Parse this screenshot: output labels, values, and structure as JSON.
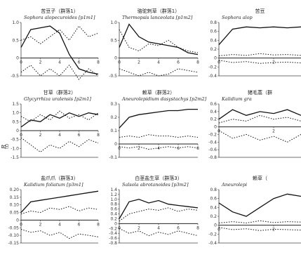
{
  "y_axis_label": "R",
  "y_axis_label_sub": "(t)",
  "chart_data": [
    {
      "type": "line",
      "title": "苦豆子（群落1）",
      "species": "Sophora alopecuroides [p1m1]",
      "ylim": [
        -0.5,
        1.0
      ],
      "yticks": [
        "1.0",
        "0.5",
        "0",
        "-0.5"
      ],
      "xticks": [
        "0",
        "2",
        "4",
        "6",
        "8"
      ],
      "x": [
        0,
        1,
        2,
        3,
        4,
        5,
        6,
        7,
        8
      ],
      "series": [
        {
          "style": "solid",
          "values": [
            0.3,
            0.8,
            0.85,
            0.9,
            0.7,
            0.1,
            -0.3,
            -0.4,
            -0.45
          ]
        },
        {
          "style": "dotted",
          "values": [
            0.5,
            0.6,
            0.4,
            0.6,
            0.8,
            0.5,
            0.9,
            0.6,
            0.7
          ]
        },
        {
          "style": "dotted",
          "values": [
            -0.4,
            -0.2,
            -0.5,
            -0.3,
            -0.5,
            -0.2,
            -0.6,
            -0.3,
            -0.5
          ]
        }
      ]
    },
    {
      "type": "line",
      "title": "骆驼刺草（群落1）",
      "species": "Thermopsis lanceolata [p1m2]",
      "ylim": [
        -0.5,
        1.0
      ],
      "yticks": [
        "1.0",
        "0.5",
        "0",
        "-0.5"
      ],
      "xticks": [
        "0",
        "2",
        "4",
        "6",
        "8"
      ],
      "x": [
        0,
        1,
        2,
        3,
        4,
        5,
        6,
        7,
        8
      ],
      "series": [
        {
          "style": "solid",
          "values": [
            0.3,
            0.95,
            0.6,
            0.45,
            0.4,
            0.35,
            0.3,
            0.15,
            0.1
          ]
        },
        {
          "style": "dotted",
          "values": [
            0.8,
            0.3,
            0.2,
            0.4,
            0.35,
            0.5,
            0.3,
            0.2,
            0.15
          ]
        },
        {
          "style": "dotted",
          "values": [
            -0.3,
            -0.4,
            -0.5,
            -0.4,
            -0.5,
            -0.45,
            -0.3,
            -0.35,
            -0.4
          ]
        }
      ]
    },
    {
      "type": "line",
      "title": "苦豆",
      "species": "Sophora alop",
      "ylim": [
        -0.4,
        0.8
      ],
      "yticks": [
        "0.8",
        "0.6",
        "0.4",
        "0.2",
        "0",
        "-0.2",
        "-0.4"
      ],
      "xticks": [
        "0",
        "2"
      ],
      "x": [
        0,
        0.5,
        1,
        1.5,
        2,
        2.5,
        3
      ],
      "series": [
        {
          "style": "solid",
          "values": [
            0.3,
            0.65,
            0.7,
            0.68,
            0.7,
            0.68,
            0.7
          ]
        },
        {
          "style": "dotted",
          "values": [
            0.05,
            0.08,
            0.06,
            0.1,
            0.07,
            0.08,
            0.06
          ]
        },
        {
          "style": "dotted",
          "values": [
            -0.05,
            -0.1,
            -0.08,
            -0.12,
            -0.1,
            -0.09,
            -0.11
          ]
        }
      ]
    },
    {
      "type": "line",
      "title": "甘草（群落2）",
      "species": "Glycyrrhiza uralensis [p2m1]",
      "ylim": [
        -1.5,
        1.5
      ],
      "yticks": [
        "1.5",
        "1.0",
        "0.5",
        "0",
        "-0.5",
        "-1.0",
        "-1.5"
      ],
      "xticks": [
        "0",
        "2",
        "4",
        "6",
        "8"
      ],
      "x": [
        0,
        1,
        2,
        3,
        4,
        5,
        6,
        7,
        8
      ],
      "series": [
        {
          "style": "solid",
          "values": [
            0.2,
            0.6,
            0.5,
            0.9,
            0.7,
            1.0,
            0.8,
            1.0,
            0.9
          ]
        },
        {
          "style": "dotted",
          "values": [
            0.8,
            0.5,
            0.9,
            0.6,
            1.1,
            0.7,
            0.9,
            0.6,
            1.0
          ]
        },
        {
          "style": "dotted",
          "values": [
            -0.4,
            -0.8,
            -1.2,
            -0.8,
            -1.0,
            -0.6,
            -0.9,
            -0.5,
            -0.7
          ]
        }
      ]
    },
    {
      "type": "line",
      "title": "赖草（群落2）",
      "species": "Aneurolepidium dasystachys [p2m2]",
      "ylim": [
        -0.1,
        0.3
      ],
      "yticks": [
        "0.3",
        "0.2",
        "0.1",
        "0",
        "-0.1"
      ],
      "xticks": [
        "0",
        "2",
        "4",
        "6",
        "8"
      ],
      "x": [
        0,
        1,
        2,
        3,
        4,
        5,
        6,
        7,
        8
      ],
      "series": [
        {
          "style": "solid",
          "values": [
            0.12,
            0.2,
            0.22,
            0.23,
            0.24,
            0.25,
            0.25,
            0.26,
            0.26
          ]
        },
        {
          "style": "dotted",
          "values": [
            0.05,
            0.06,
            0.05,
            0.07,
            0.06,
            0.06,
            0.05,
            0.06,
            0.05
          ]
        },
        {
          "style": "dotted",
          "values": [
            -0.02,
            -0.03,
            -0.02,
            -0.04,
            -0.03,
            -0.02,
            -0.03,
            -0.02,
            -0.03
          ]
        }
      ]
    },
    {
      "type": "line",
      "title": "猪毛蒿（群",
      "species": "Kalidium gra",
      "ylim": [
        -0.8,
        0.6
      ],
      "yticks": [
        "0.6",
        "0.4",
        "0.2",
        "0",
        "-0.2",
        "-0.4",
        "-0.6",
        "-0.8"
      ],
      "xticks": [
        "0",
        "2"
      ],
      "x": [
        0,
        0.5,
        1,
        1.5,
        2,
        2.5,
        3
      ],
      "series": [
        {
          "style": "solid",
          "values": [
            0.2,
            0.45,
            0.3,
            0.4,
            0.35,
            0.45,
            0.3
          ]
        },
        {
          "style": "dotted",
          "values": [
            0.1,
            0.2,
            0.15,
            0.3,
            0.2,
            0.25,
            0.15
          ]
        },
        {
          "style": "dotted",
          "values": [
            -0.1,
            -0.3,
            -0.2,
            -0.35,
            -0.25,
            -0.4,
            -0.2
          ]
        }
      ]
    },
    {
      "type": "line",
      "title": "盐爪爪（群落3）",
      "species": "Kalidium foliatum [p3m1]",
      "ylim": [
        -0.15,
        0.2
      ],
      "yticks": [
        "0.20",
        "0.15",
        "0.10",
        "0.05",
        "0",
        "-0.05",
        "-0.10",
        "-0.15"
      ],
      "xticks": [
        "0",
        "2",
        "4",
        "6",
        "8"
      ],
      "x": [
        0,
        1,
        2,
        3,
        4,
        5,
        6,
        7,
        8
      ],
      "series": [
        {
          "style": "solid",
          "values": [
            0.05,
            0.12,
            0.13,
            0.14,
            0.15,
            0.16,
            0.17,
            0.18,
            0.19
          ]
        },
        {
          "style": "dotted",
          "values": [
            0.04,
            0.06,
            0.05,
            0.08,
            0.07,
            0.09,
            0.06,
            0.08,
            0.07
          ]
        },
        {
          "style": "dotted",
          "values": [
            -0.06,
            -0.08,
            -0.07,
            -0.1,
            -0.08,
            -0.12,
            -0.09,
            -0.1,
            -0.11
          ]
        }
      ]
    },
    {
      "type": "line",
      "title": "白茎盐生草（群落3）",
      "species": "Salsola abrotanoides [p3m2]",
      "ylim": [
        -0.8,
        1.4
      ],
      "yticks": [
        "1.4",
        "1.2",
        "1.0",
        "0.8",
        "0.6",
        "0.4",
        "0.2",
        "0",
        "-0.2",
        "-0.4",
        "-0.6",
        "-0.8"
      ],
      "xticks": [
        "0",
        "2",
        "4",
        "6",
        "8"
      ],
      "x": [
        0,
        1,
        2,
        3,
        4,
        5,
        6,
        7,
        8
      ],
      "series": [
        {
          "style": "solid",
          "values": [
            0.2,
            0.9,
            1.0,
            0.85,
            0.95,
            0.8,
            0.75,
            0.7,
            0.65
          ]
        },
        {
          "style": "dotted",
          "values": [
            0.1,
            0.4,
            0.5,
            0.6,
            0.55,
            0.65,
            0.5,
            0.6,
            0.55
          ]
        },
        {
          "style": "dotted",
          "values": [
            -0.2,
            -0.4,
            -0.3,
            -0.5,
            -0.35,
            -0.45,
            -0.3,
            -0.4,
            -0.5
          ]
        }
      ]
    },
    {
      "type": "line",
      "title": "赖草（",
      "species": "Aneurolepi",
      "ylim": [
        -0.4,
        0.8
      ],
      "yticks": [
        "0.8",
        "0.6",
        "0.4",
        "0.2",
        "0",
        "-0.2",
        "-0.4"
      ],
      "xticks": [
        "0",
        "2"
      ],
      "x": [
        0,
        0.5,
        1,
        1.5,
        2,
        2.5,
        3
      ],
      "series": [
        {
          "style": "solid",
          "values": [
            0.5,
            0.3,
            0.2,
            0.4,
            0.6,
            0.7,
            0.65
          ]
        },
        {
          "style": "dotted",
          "values": [
            0.05,
            0.08,
            0.05,
            0.1,
            0.06,
            0.08,
            0.07
          ]
        },
        {
          "style": "dotted",
          "values": [
            -0.05,
            -0.1,
            -0.08,
            -0.12,
            -0.09,
            -0.1,
            -0.11
          ]
        }
      ]
    }
  ]
}
